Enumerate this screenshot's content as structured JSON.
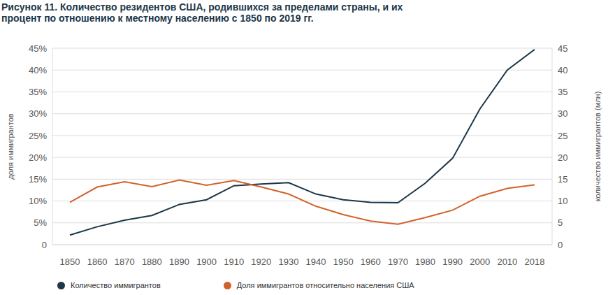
{
  "chart_data": {
    "type": "line",
    "title": "Рисунок 11. Количество резидентов США, родившихся за пределами страны, и их процент по отношению к местному населению с 1850 по 2019 гг.",
    "categories": [
      "1850",
      "1860",
      "1870",
      "1880",
      "1890",
      "1900",
      "1910",
      "1920",
      "1930",
      "1940",
      "1950",
      "1960",
      "1970",
      "1980",
      "1990",
      "2000",
      "2010",
      "2018"
    ],
    "y_label": "доля иммигрантов",
    "y2_label": "количество иммигрантов (млн)",
    "ylim": [
      0,
      45
    ],
    "yticks": [
      0,
      {
        "value": 5,
        "label": "5%"
      },
      {
        "value": 10,
        "label": "10%"
      },
      {
        "value": 15,
        "label": "15%"
      },
      {
        "value": 20,
        "label": "20%"
      },
      {
        "value": 25,
        "label": "25%"
      },
      {
        "value": 30,
        "label": "30%"
      },
      {
        "value": 35,
        "label": "35%"
      },
      {
        "value": 40,
        "label": "40%"
      },
      {
        "value": 45,
        "label": "45%"
      }
    ],
    "y2lim": [
      0,
      45
    ],
    "y2ticks": [
      0,
      5,
      10,
      15,
      20,
      25,
      30,
      35,
      40,
      45
    ],
    "grid": true,
    "legend": "bottom",
    "series": [
      {
        "name": "Количество иммигрантов",
        "color": "#1c3748",
        "axis": "y2",
        "values": [
          2.2,
          4.1,
          5.6,
          6.7,
          9.2,
          10.3,
          13.5,
          13.9,
          14.2,
          11.6,
          10.3,
          9.7,
          9.6,
          14.1,
          19.8,
          31.1,
          40.0,
          44.7
        ]
      },
      {
        "name": "Доля иммигрантов относительно населения США",
        "color": "#d2622a",
        "values": [
          9.7,
          13.2,
          14.4,
          13.3,
          14.8,
          13.6,
          14.7,
          13.2,
          11.6,
          8.8,
          6.9,
          5.4,
          4.7,
          6.2,
          7.9,
          11.1,
          12.9,
          13.7
        ]
      }
    ]
  }
}
